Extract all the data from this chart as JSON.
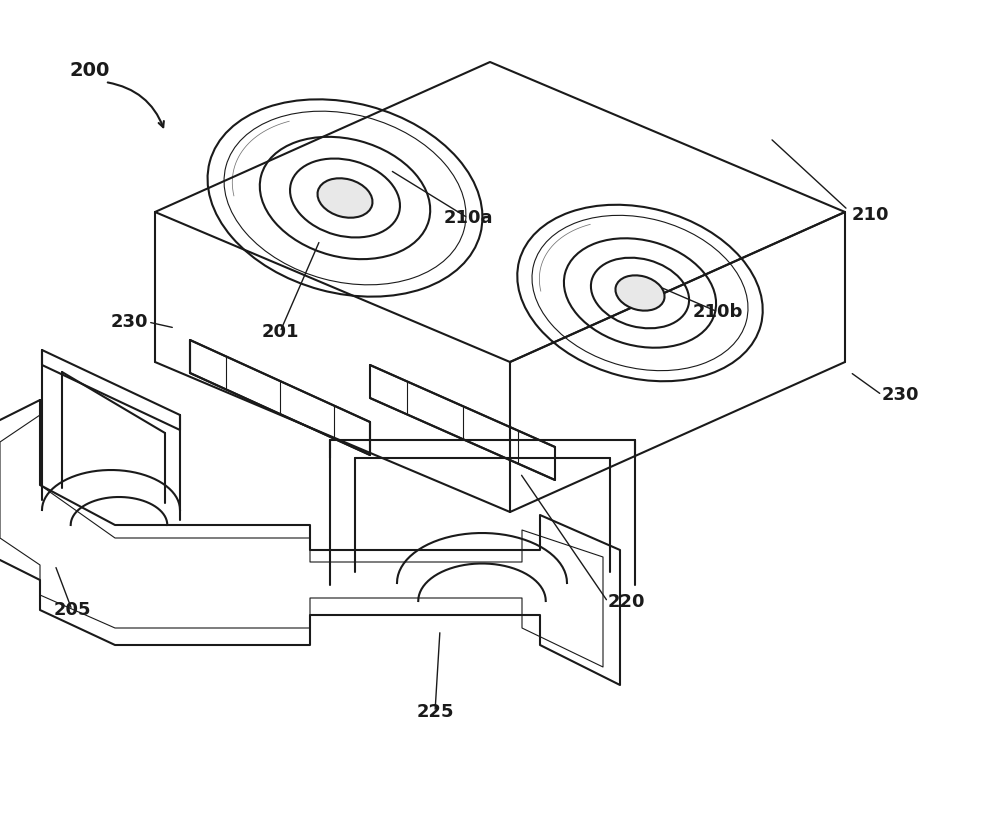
{
  "bg_color": "#ffffff",
  "line_color": "#1a1a1a",
  "lw": 1.5,
  "lw_thin": 0.8,
  "fs": 13,
  "arrow_lw": 1.2
}
